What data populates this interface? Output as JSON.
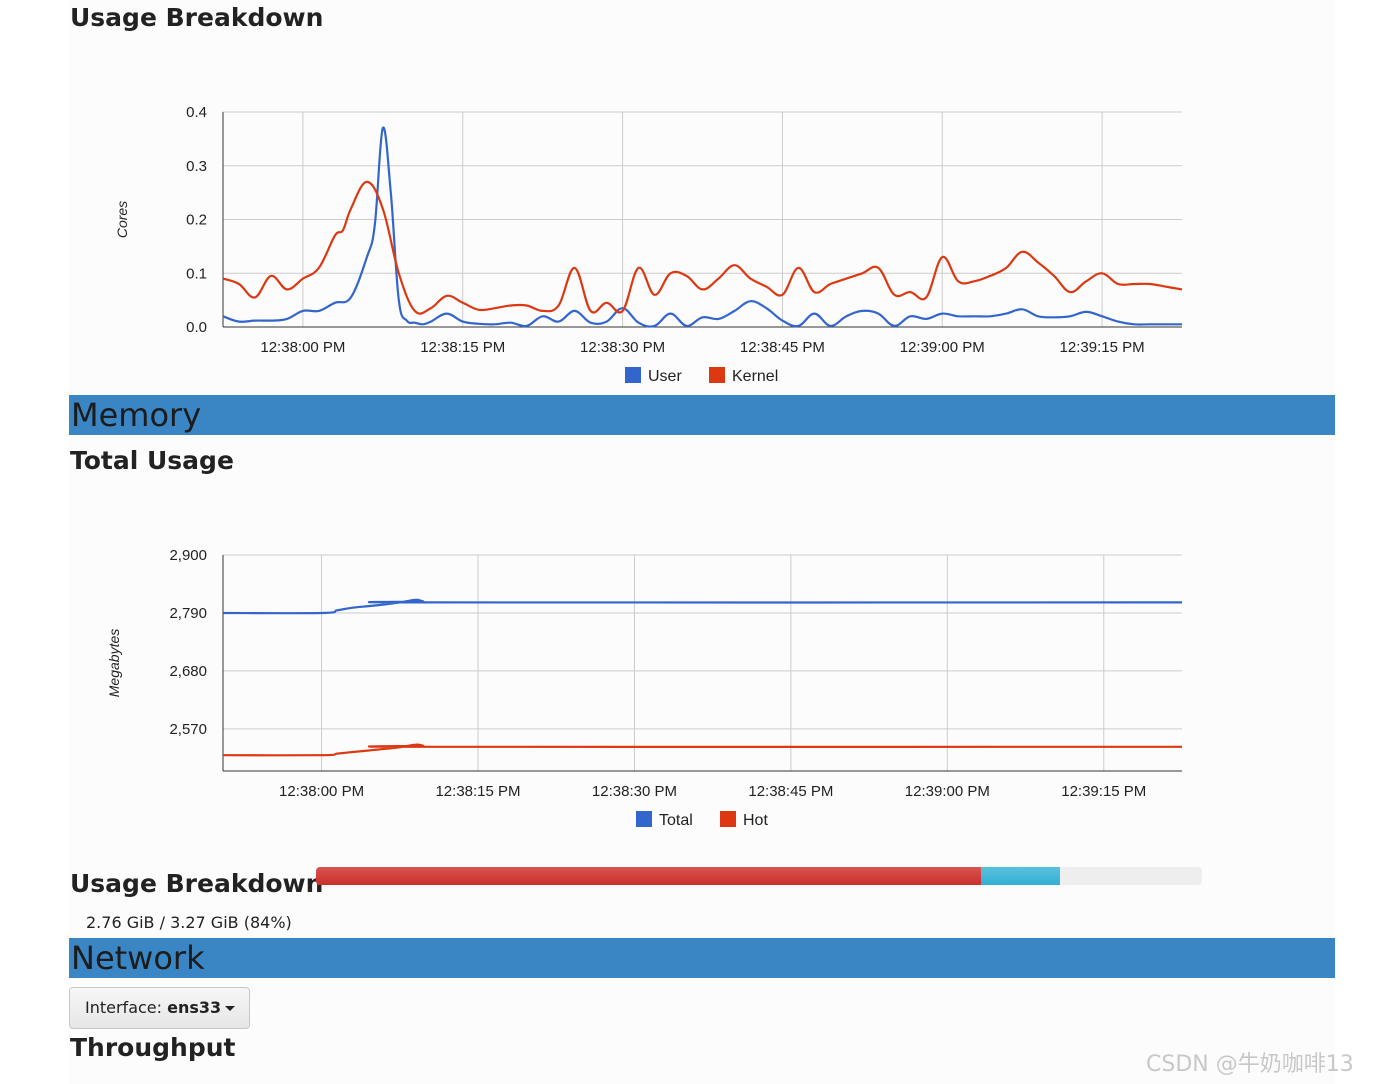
{
  "cpu": {
    "breakdown_title": "Usage Breakdown"
  },
  "memory": {
    "section_title": "Memory",
    "total_usage_title": "Total Usage",
    "breakdown_title": "Usage Breakdown",
    "breakdown_text": "2.76 GiB / 3.27 GiB (84%)",
    "used_fraction": 0.75,
    "hot_fraction": 0.09
  },
  "network": {
    "section_title": "Network",
    "interface_label": "Interface:",
    "interface_value": "ens33",
    "throughput_title": "Throughput"
  },
  "watermark": "CSDN @牛奶咖啡13",
  "colors": {
    "series_blue": "#3366cc",
    "series_red": "#dc3912",
    "banner": "#3a86c4"
  },
  "chart_data": [
    {
      "type": "line",
      "title": "Usage Breakdown",
      "xlabel": "",
      "ylabel": "Cores",
      "ylim": [
        0,
        0.4
      ],
      "yticks": [
        "0.0",
        "0.1",
        "0.2",
        "0.3",
        "0.4"
      ],
      "xlim": [
        -5,
        55
      ],
      "xticks": [
        0,
        10,
        20,
        30,
        40,
        50
      ],
      "xtick_labels": [
        "12:38:00 PM",
        "12:38:15 PM",
        "12:38:30 PM",
        "12:38:45 PM",
        "12:39:00 PM",
        "12:39:15 PM"
      ],
      "legend": "bottom",
      "series": [
        {
          "name": "User",
          "color": "#3366cc",
          "x": [
            -5,
            -4,
            -3,
            -2,
            -1,
            0,
            1,
            2,
            3,
            4,
            4.5,
            5,
            5.5,
            6,
            6.5,
            7,
            7.5,
            8,
            9,
            10,
            11,
            12,
            13,
            14,
            15,
            16,
            17,
            18,
            19,
            20,
            21,
            22,
            23,
            24,
            25,
            26,
            27,
            28,
            29,
            30,
            31,
            32,
            33,
            34,
            35,
            36,
            37,
            38,
            39,
            40,
            41,
            42,
            43,
            44,
            45,
            46,
            47,
            48,
            49,
            50,
            51,
            52,
            53,
            54,
            55
          ],
          "y": [
            0.02,
            0.01,
            0.012,
            0.012,
            0.015,
            0.03,
            0.03,
            0.045,
            0.055,
            0.13,
            0.19,
            0.37,
            0.25,
            0.05,
            0.012,
            0.008,
            0.005,
            0.01,
            0.025,
            0.01,
            0.006,
            0.005,
            0.008,
            0.002,
            0.02,
            0.01,
            0.03,
            0.008,
            0.01,
            0.035,
            0.008,
            0.002,
            0.025,
            0.002,
            0.018,
            0.015,
            0.03,
            0.048,
            0.035,
            0.012,
            0.002,
            0.025,
            0.002,
            0.02,
            0.03,
            0.025,
            0.002,
            0.02,
            0.015,
            0.025,
            0.02,
            0.02,
            0.02,
            0.025,
            0.033,
            0.02,
            0.018,
            0.02,
            0.028,
            0.02,
            0.01,
            0.005,
            0.005,
            0.005,
            0.005
          ]
        },
        {
          "name": "Kernel",
          "color": "#dc3912",
          "x": [
            -5,
            -4,
            -3,
            -2,
            -1,
            0,
            1,
            2,
            2.5,
            3,
            4,
            5,
            6,
            7,
            8,
            9,
            10,
            11,
            12,
            13,
            14,
            15,
            16,
            17,
            18,
            19,
            20,
            21,
            22,
            23,
            24,
            25,
            26,
            27,
            28,
            29,
            30,
            31,
            32,
            33,
            34,
            35,
            36,
            37,
            38,
            39,
            40,
            41,
            42,
            43,
            44,
            45,
            46,
            47,
            48,
            49,
            50,
            51,
            52,
            53,
            54,
            55
          ],
          "y": [
            0.09,
            0.08,
            0.055,
            0.095,
            0.07,
            0.09,
            0.11,
            0.17,
            0.18,
            0.22,
            0.27,
            0.22,
            0.1,
            0.03,
            0.035,
            0.058,
            0.045,
            0.032,
            0.035,
            0.04,
            0.04,
            0.03,
            0.04,
            0.11,
            0.03,
            0.045,
            0.03,
            0.11,
            0.06,
            0.1,
            0.095,
            0.07,
            0.09,
            0.115,
            0.09,
            0.075,
            0.06,
            0.11,
            0.065,
            0.08,
            0.09,
            0.1,
            0.11,
            0.06,
            0.065,
            0.055,
            0.13,
            0.085,
            0.085,
            0.095,
            0.11,
            0.14,
            0.12,
            0.095,
            0.065,
            0.085,
            0.1,
            0.08,
            0.08,
            0.08,
            0.075,
            0.07
          ]
        }
      ]
    },
    {
      "type": "line",
      "title": "Total Usage",
      "xlabel": "",
      "ylabel": "Megabytes",
      "ylim": [
        2490,
        2900
      ],
      "yticks": [
        "2,570",
        "2,680",
        "2,790",
        "2,900"
      ],
      "ytick_values": [
        2570,
        2680,
        2790,
        2900
      ],
      "xlim": [
        -6.3,
        55
      ],
      "xticks": [
        0,
        10,
        20,
        30,
        40,
        50
      ],
      "xtick_labels": [
        "12:38:00 PM",
        "12:38:15 PM",
        "12:38:30 PM",
        "12:38:45 PM",
        "12:39:00 PM",
        "12:39:15 PM"
      ],
      "legend": "bottom",
      "series": [
        {
          "name": "Total",
          "color": "#3366cc",
          "x": [
            -6.3,
            0,
            1,
            2,
            3,
            4,
            5,
            6,
            6.5,
            7,
            55
          ],
          "y": [
            2790,
            2790,
            2795,
            2800,
            2803,
            2806,
            2810,
            2815,
            2812,
            2810,
            2810
          ]
        },
        {
          "name": "Hot",
          "color": "#dc3912",
          "x": [
            -6.3,
            0,
            1,
            2,
            3,
            4,
            5,
            6,
            6.5,
            7,
            55
          ],
          "y": [
            2520,
            2520,
            2523,
            2526,
            2529,
            2532,
            2535,
            2540,
            2538,
            2536,
            2536
          ]
        }
      ]
    }
  ]
}
